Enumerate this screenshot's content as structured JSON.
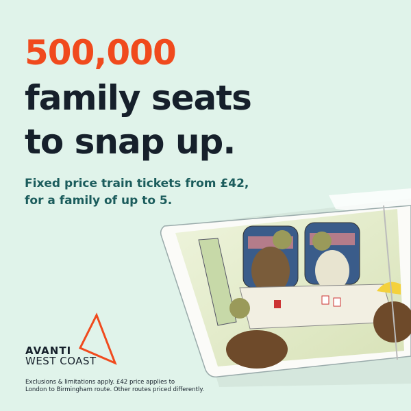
{
  "headline": {
    "line1": "500,000",
    "line2": "family seats",
    "line3": "to snap up."
  },
  "subheadline": {
    "line1": "Fixed price train tickets from £42,",
    "line2": "for a family of up to 5."
  },
  "brand": {
    "name_line1": "AVANTI",
    "name_line2": "WEST COAST",
    "logo": "triangle-logo"
  },
  "disclaimer": {
    "line1": "Exclusions & limitations apply. £42 price applies to",
    "line2": "London to Birmingham route. Other routes priced differently."
  },
  "colors": {
    "background": "#e0f3ea",
    "accent": "#f04a1d",
    "headline": "#16202b",
    "subheadline": "#1b5c5c"
  }
}
